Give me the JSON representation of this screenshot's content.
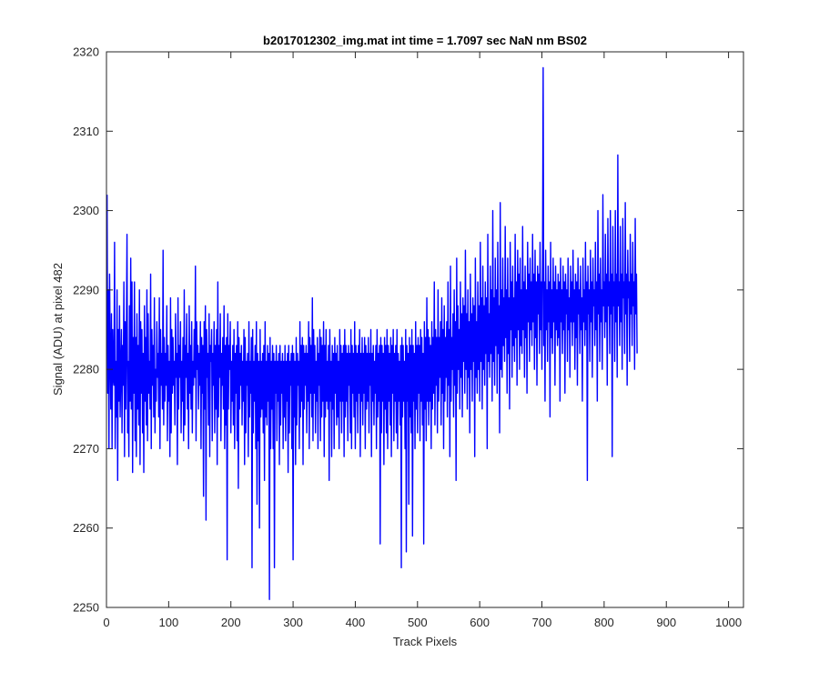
{
  "chart_data": {
    "type": "line",
    "title": "b2017012302_img.mat int time = 1.7097 sec  NaN nm BS02",
    "xlabel": "Track Pixels",
    "ylabel": "Signal (ADU) at pixel 482",
    "xlim": [
      0,
      1024
    ],
    "ylim": [
      2250,
      2320
    ],
    "xticks": [
      0,
      100,
      200,
      300,
      400,
      500,
      600,
      700,
      800,
      900,
      1000
    ],
    "yticks": [
      2250,
      2260,
      2270,
      2280,
      2290,
      2300,
      2310,
      2320
    ],
    "grid": false,
    "line_color": "#0000ff",
    "series": [
      {
        "x_start": 1,
        "x_step": 1,
        "values": [
          2302,
          2277,
          2290,
          2270,
          2292,
          2282,
          2275,
          2287,
          2270,
          2285,
          2279,
          2278,
          2296,
          2270,
          2281,
          2274,
          2290,
          2266,
          2285,
          2276,
          2288,
          2274,
          2280,
          2285,
          2272,
          2283,
          2278,
          2291,
          2269,
          2286,
          2275,
          2284,
          2297,
          2272,
          2281,
          2269,
          2288,
          2276,
          2294,
          2275,
          2291,
          2267,
          2284,
          2277,
          2291,
          2271,
          2284,
          2269,
          2287,
          2275,
          2283,
          2273,
          2290,
          2268,
          2286,
          2277,
          2285,
          2272,
          2282,
          2267,
          2288,
          2276,
          2284,
          2273,
          2290,
          2271,
          2287,
          2277,
          2281,
          2275,
          2292,
          2270,
          2285,
          2278,
          2283,
          2274,
          2289,
          2272,
          2280,
          2276,
          2286,
          2279,
          2282,
          2274,
          2289,
          2270,
          2285,
          2278,
          2282,
          2275,
          2295,
          2273,
          2284,
          2276,
          2282,
          2278,
          2288,
          2271,
          2283,
          2276,
          2281,
          2269,
          2289,
          2272,
          2285,
          2277,
          2284,
          2278,
          2281,
          2273,
          2287,
          2279,
          2282,
          2268,
          2289,
          2275,
          2283,
          2279,
          2286,
          2272,
          2281,
          2276,
          2284,
          2271,
          2290,
          2273,
          2283,
          2279,
          2287,
          2275,
          2282,
          2270,
          2288,
          2277,
          2283,
          2275,
          2286,
          2272,
          2281,
          2278,
          2285,
          2279,
          2293,
          2271,
          2286,
          2280,
          2283,
          2275,
          2282,
          2278,
          2286,
          2270,
          2284,
          2277,
          2283,
          2264,
          2286,
          2275,
          2288,
          2261,
          2285,
          2279,
          2282,
          2273,
          2287,
          2269,
          2283,
          2281,
          2285,
          2271,
          2282,
          2278,
          2286,
          2272,
          2283,
          2275,
          2285,
          2268,
          2291,
          2274,
          2283,
          2279,
          2287,
          2271,
          2282,
          2278,
          2284,
          2275,
          2288,
          2270,
          2283,
          2273,
          2284,
          2256,
          2287,
          2275,
          2283,
          2280,
          2286,
          2272,
          2281,
          2276,
          2283,
          2273,
          2285,
          2270,
          2282,
          2277,
          2283,
          2271,
          2286,
          2265,
          2284,
          2275,
          2282,
          2278,
          2283,
          2273,
          2281,
          2276,
          2285,
          2268,
          2284,
          2272,
          2281,
          2278,
          2282,
          2269,
          2286,
          2274,
          2281,
          2277,
          2284,
          2255,
          2285,
          2272,
          2281,
          2276,
          2283,
          2270,
          2286,
          2263,
          2282,
          2271,
          2281,
          2260,
          2285,
          2274,
          2281,
          2275,
          2282,
          2272,
          2283,
          2266,
          2286,
          2274,
          2281,
          2273,
          2283,
          2276,
          2282,
          2251,
          2284,
          2270,
          2281,
          2275,
          2283,
          2270,
          2282,
          2255,
          2281,
          2277,
          2283,
          2271,
          2281,
          2276,
          2282,
          2268,
          2283,
          2273,
          2281,
          2277,
          2282,
          2270,
          2281,
          2274,
          2283,
          2271,
          2281,
          2276,
          2282,
          2267,
          2283,
          2272,
          2281,
          2278,
          2282,
          2270,
          2283,
          2256,
          2282,
          2274,
          2281,
          2268,
          2284,
          2273,
          2282,
          2278,
          2281,
          2270,
          2286,
          2274,
          2283,
          2276,
          2284,
          2268,
          2283,
          2275,
          2282,
          2278,
          2283,
          2272,
          2282,
          2276,
          2286,
          2270,
          2284,
          2277,
          2283,
          2274,
          2289,
          2271,
          2285,
          2277,
          2283,
          2272,
          2281,
          2276,
          2284,
          2270,
          2282,
          2278,
          2285,
          2271,
          2284,
          2274,
          2283,
          2276,
          2286,
          2269,
          2283,
          2274,
          2285,
          2276,
          2281,
          2275,
          2283,
          2266,
          2285,
          2276,
          2281,
          2269,
          2283,
          2275,
          2282,
          2270,
          2284,
          2277,
          2282,
          2273,
          2283,
          2274,
          2281,
          2270,
          2285,
          2276,
          2283,
          2272,
          2282,
          2276,
          2283,
          2269,
          2285,
          2274,
          2283,
          2276,
          2282,
          2271,
          2283,
          2278,
          2282,
          2272,
          2285,
          2270,
          2283,
          2277,
          2282,
          2274,
          2286,
          2270,
          2283,
          2276,
          2282,
          2272,
          2283,
          2277,
          2285,
          2269,
          2282,
          2276,
          2284,
          2273,
          2282,
          2277,
          2284,
          2270,
          2283,
          2275,
          2282,
          2276,
          2284,
          2272,
          2282,
          2278,
          2285,
          2269,
          2282,
          2276,
          2283,
          2273,
          2281,
          2277,
          2283,
          2270,
          2285,
          2274,
          2282,
          2276,
          2283,
          2258,
          2284,
          2272,
          2283,
          2276,
          2282,
          2268,
          2284,
          2275,
          2283,
          2272,
          2285,
          2270,
          2283,
          2276,
          2282,
          2273,
          2284,
          2269,
          2283,
          2277,
          2285,
          2271,
          2282,
          2276,
          2283,
          2272,
          2285,
          2270,
          2282,
          2276,
          2281,
          2273,
          2283,
          2255,
          2284,
          2274,
          2283,
          2276,
          2281,
          2270,
          2285,
          2257,
          2283,
          2276,
          2282,
          2263,
          2284,
          2274,
          2283,
          2272,
          2285,
          2259,
          2283,
          2276,
          2282,
          2270,
          2286,
          2275,
          2283,
          2272,
          2284,
          2277,
          2283,
          2271,
          2285,
          2276,
          2284,
          2273,
          2282,
          2258,
          2286,
          2275,
          2284,
          2271,
          2289,
          2276,
          2285,
          2273,
          2284,
          2276,
          2283,
          2270,
          2286,
          2275,
          2284,
          2277,
          2291,
          2273,
          2285,
          2278,
          2284,
          2272,
          2290,
          2276,
          2284,
          2279,
          2286,
          2273,
          2289,
          2277,
          2285,
          2270,
          2288,
          2276,
          2284,
          2279,
          2286,
          2274,
          2291,
          2278,
          2285,
          2269,
          2293,
          2276,
          2284,
          2280,
          2287,
          2274,
          2290,
          2278,
          2286,
          2266,
          2294,
          2277,
          2288,
          2280,
          2285,
          2275,
          2291,
          2279,
          2287,
          2274,
          2289,
          2281,
          2288,
          2277,
          2295,
          2280,
          2287,
          2275,
          2290,
          2279,
          2286,
          2272,
          2292,
          2280,
          2287,
          2276,
          2289,
          2281,
          2288,
          2269,
          2294,
          2279,
          2286,
          2277,
          2291,
          2280,
          2288,
          2276,
          2296,
          2281,
          2289,
          2275,
          2293,
          2280,
          2288,
          2278,
          2291,
          2282,
          2289,
          2270,
          2297,
          2281,
          2287,
          2279,
          2293,
          2282,
          2290,
          2276,
          2300,
          2281,
          2289,
          2278,
          2294,
          2283,
          2290,
          2277,
          2296,
          2282,
          2288,
          2272,
          2301,
          2280,
          2290,
          2279,
          2294,
          2283,
          2289,
          2281,
          2298,
          2284,
          2290,
          2277,
          2294,
          2282,
          2289,
          2275,
          2296,
          2285,
          2291,
          2279,
          2293,
          2283,
          2289,
          2281,
          2297,
          2284,
          2291,
          2278,
          2295,
          2285,
          2292,
          2280,
          2294,
          2283,
          2290,
          2282,
          2298,
          2285,
          2291,
          2279,
          2293,
          2284,
          2290,
          2277,
          2296,
          2286,
          2292,
          2281,
          2294,
          2285,
          2291,
          2283,
          2297,
          2286,
          2292,
          2280,
          2295,
          2284,
          2291,
          2278,
          2293,
          2287,
          2292,
          2282,
          2296,
          2285,
          2291,
          2280,
          2294,
          2318,
          2283,
          2291,
          2276,
          2295,
          2285,
          2290,
          2281,
          2293,
          2286,
          2291,
          2274,
          2296,
          2284,
          2290,
          2282,
          2294,
          2286,
          2291,
          2278,
          2293,
          2285,
          2290,
          2283,
          2292,
          2284,
          2291,
          2276,
          2294,
          2286,
          2290,
          2282,
          2293,
          2285,
          2291,
          2277,
          2292,
          2287,
          2290,
          2281,
          2294,
          2285,
          2289,
          2279,
          2293,
          2286,
          2291,
          2283,
          2295,
          2286,
          2290,
          2280,
          2292,
          2284,
          2291,
          2278,
          2294,
          2287,
          2290,
          2282,
          2293,
          2285,
          2289,
          2276,
          2294,
          2286,
          2290,
          2283,
          2296,
          2285,
          2291,
          2266,
          2293,
          2287,
          2290,
          2281,
          2295,
          2286,
          2291,
          2279,
          2294,
          2288,
          2290,
          2283,
          2296,
          2285,
          2291,
          2276,
          2300,
          2287,
          2292,
          2281,
          2294,
          2286,
          2290,
          2280,
          2302,
          2288,
          2291,
          2284,
          2297,
          2286,
          2292,
          2278,
          2299,
          2288,
          2291,
          2282,
          2300,
          2287,
          2292,
          2269,
          2298,
          2288,
          2291,
          2281,
          2300,
          2286,
          2292,
          2279,
          2307,
          2288,
          2291,
          2283,
          2298,
          2286,
          2292,
          2280,
          2299,
          2289,
          2291,
          2282,
          2301,
          2287,
          2292,
          2278,
          2295,
          2289,
          2291,
          2281,
          2297,
          2287,
          2292,
          2283,
          2296,
          2288,
          2291,
          2280,
          2299,
          2287,
          2292,
          2282
        ]
      }
    ]
  }
}
